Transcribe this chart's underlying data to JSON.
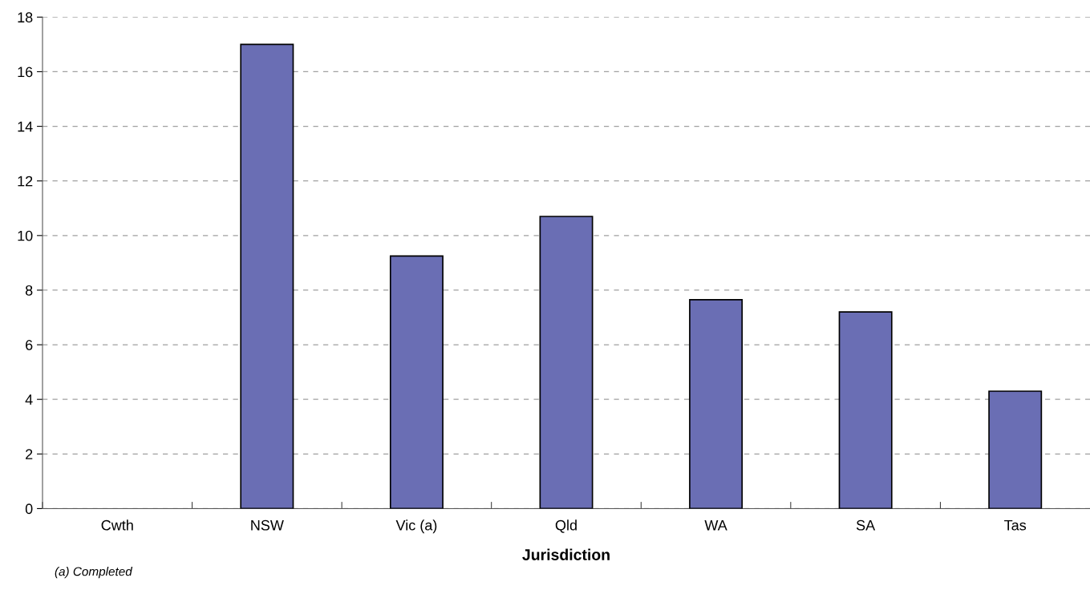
{
  "chart_data": {
    "type": "bar",
    "xlabel": "Jurisdiction",
    "categories": [
      "Cwth",
      "NSW",
      "Vic (a)",
      "Qld",
      "WA",
      "SA",
      "Tas"
    ],
    "values": [
      null,
      17.0,
      9.25,
      10.7,
      7.65,
      7.2,
      4.3
    ],
    "color": "#6a6eb4",
    "ylim": [
      0,
      18
    ],
    "yticks": [
      0,
      2,
      4,
      6,
      8,
      10,
      12,
      14,
      16,
      18
    ],
    "grid": "y",
    "annotations": [
      "(a) Completed"
    ]
  }
}
